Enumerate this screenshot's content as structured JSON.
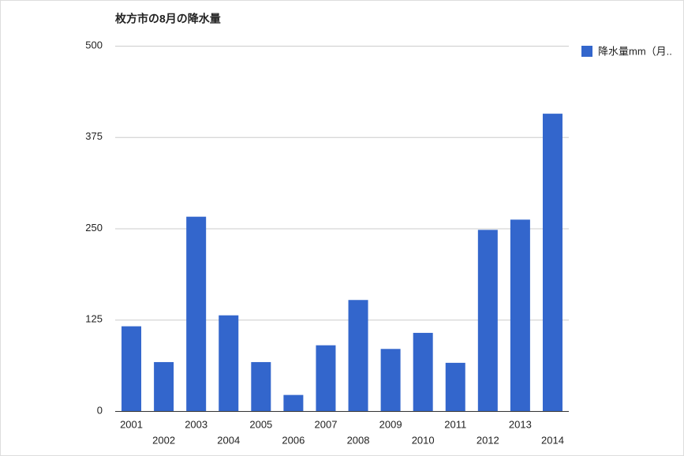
{
  "chart_data": {
    "type": "bar",
    "title": "枚方市の8月の降水量",
    "categories": [
      "2001",
      "2002",
      "2003",
      "2004",
      "2005",
      "2006",
      "2007",
      "2008",
      "2009",
      "2010",
      "2011",
      "2012",
      "2013",
      "2014"
    ],
    "series": [
      {
        "name": "降水量mm（月..",
        "color": "#3366cc",
        "values": [
          116,
          67,
          266,
          131,
          67,
          22,
          90,
          152,
          85,
          107,
          66,
          248,
          262,
          407
        ]
      }
    ],
    "ylim": [
      0,
      500
    ],
    "yticks": [
      0,
      125,
      250,
      375,
      500
    ],
    "grid": true,
    "legend": "right"
  }
}
